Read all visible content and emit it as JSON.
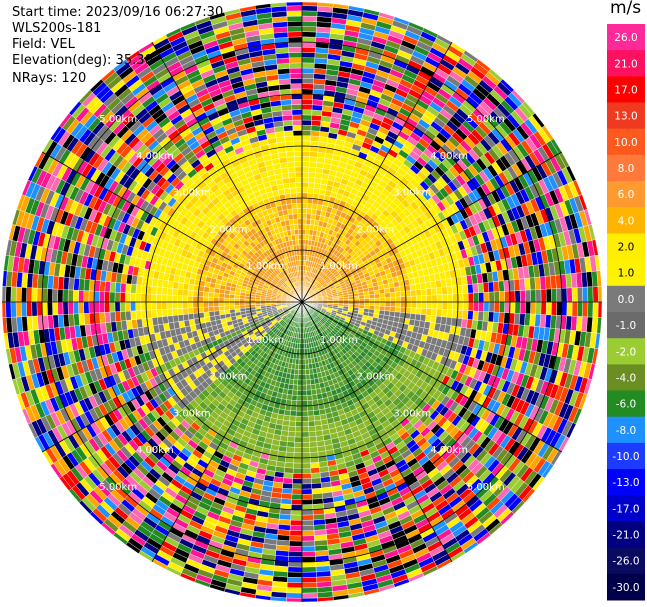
{
  "header": {
    "start_time": "Start time: 2023/09/16 06:27:30",
    "instrument": "WLS200s-181",
    "field": "Field: VEL",
    "elevation": "Elevation(deg): 35.30",
    "nrays": "NRays: 120"
  },
  "chart_data": {
    "type": "heatmap",
    "projection": "polar-ppi",
    "title": "",
    "field": "VEL",
    "elevation_deg": 35.3,
    "n_rays": 120,
    "range_rings_km": [
      1,
      2,
      3,
      4,
      5
    ],
    "ring_labels": [
      "1.00km",
      "2.00km",
      "3.00km",
      "4.00km",
      "5.00km"
    ],
    "max_range_km": 5.8,
    "colorbar": {
      "unit": "m/s",
      "ticks": [
        "26.0",
        "21.0",
        "17.0",
        "13.0",
        "10.0",
        "8.0",
        "6.0",
        "4.0",
        "2.0",
        "1.0",
        "0.0",
        "-1.0",
        "-2.0",
        "-4.0",
        "-6.0",
        "-8.0",
        "-10.0",
        "-13.0",
        "-17.0",
        "-21.0",
        "-26.0",
        "-30.0"
      ],
      "colors": [
        "#ff2a9a",
        "#ff1060",
        "#ff0000",
        "#f03a20",
        "#ff5a1e",
        "#ff7a3a",
        "#ff9a30",
        "#ffb400",
        "#ffee00",
        "#fff200",
        "#7a7a7a",
        "#6b6b6b",
        "#9acd32",
        "#6b8e23",
        "#228b22",
        "#1e90ff",
        "#1e3cff",
        "#0000ff",
        "#0000cd",
        "#000080",
        "#0a0a60",
        "#00004a"
      ]
    },
    "colors": {
      "north_near": "#f7a01e",
      "north_mid": "#ffd400",
      "north_outer": "#ffee00",
      "zero_band": "#7a7a7a",
      "south_near": "#2e8b2e",
      "south_mid": "#5aa02a",
      "south_outer": "#8db82a",
      "noise": [
        "#ff1493",
        "#0000ff",
        "#ffee00",
        "#6b8e23",
        "#ff4500",
        "#1e90ff",
        "#000080",
        "#ff0000",
        "#7a7a7a",
        "#9acd32",
        "#ffa500",
        "#228b22",
        "#ff69b4",
        "#000000"
      ]
    }
  }
}
